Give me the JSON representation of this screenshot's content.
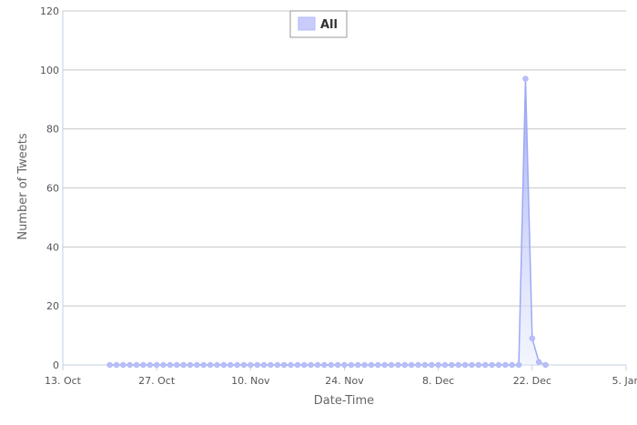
{
  "chart_data": {
    "type": "area",
    "xlabel": "Date-Time",
    "ylabel": "Number of Tweets",
    "ylim": [
      0,
      120
    ],
    "yticks": [
      0,
      20,
      40,
      60,
      80,
      100,
      120
    ],
    "xlim": [
      "2013-10-13",
      "2014-01-05"
    ],
    "xticks": [
      {
        "date": "2013-10-13",
        "label": "13. Oct"
      },
      {
        "date": "2013-10-27",
        "label": "27. Oct"
      },
      {
        "date": "2013-11-10",
        "label": "10. Nov"
      },
      {
        "date": "2013-11-24",
        "label": "24. Nov"
      },
      {
        "date": "2013-12-08",
        "label": "8. Dec"
      },
      {
        "date": "2013-12-22",
        "label": "22. Dec"
      },
      {
        "date": "2014-01-05",
        "label": "5. Jan"
      }
    ],
    "grid": true,
    "legend": "top-center",
    "series": [
      {
        "name": "All",
        "color": "#9fa9f5",
        "points": [
          {
            "x": "2013-10-20",
            "y": 0
          },
          {
            "x": "2013-12-20",
            "y": 0
          },
          {
            "x": "2013-12-21",
            "y": 97
          },
          {
            "x": "2013-12-22",
            "y": 9
          },
          {
            "x": "2013-12-23",
            "y": 1
          },
          {
            "x": "2013-12-24",
            "y": 0
          }
        ]
      }
    ]
  }
}
